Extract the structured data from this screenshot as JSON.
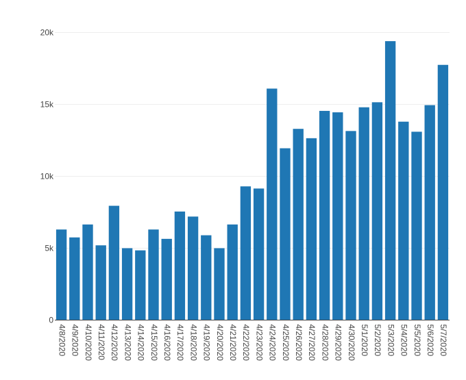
{
  "chart_data": {
    "type": "bar",
    "title": "",
    "xlabel": "",
    "ylabel": "",
    "ylim": [
      0,
      20000
    ],
    "yticks": [
      0,
      5000,
      10000,
      15000,
      20000
    ],
    "ytick_labels": [
      "0",
      "5k",
      "10k",
      "15k",
      "20k"
    ],
    "grid": true,
    "bar_color": "#1f77b4",
    "categories": [
      "4/8/2020",
      "4/9/2020",
      "4/10/2020",
      "4/11/2020",
      "4/12/2020",
      "4/13/2020",
      "4/14/2020",
      "4/15/2020",
      "4/16/2020",
      "4/17/2020",
      "4/18/2020",
      "4/19/2020",
      "4/20/2020",
      "4/21/2020",
      "4/22/2020",
      "4/23/2020",
      "4/24/2020",
      "4/25/2020",
      "4/26/2020",
      "4/27/2020",
      "4/28/2020",
      "4/29/2020",
      "4/30/2020",
      "5/1/2020",
      "5/2/2020",
      "5/3/2020",
      "5/4/2020",
      "5/5/2020",
      "5/6/2020",
      "5/7/2020"
    ],
    "values": [
      6300,
      5750,
      6650,
      5200,
      7950,
      5000,
      4850,
      6300,
      5650,
      7550,
      7200,
      5900,
      5000,
      6650,
      9300,
      9150,
      16100,
      11950,
      13300,
      12650,
      14550,
      14450,
      13150,
      14800,
      15150,
      19400,
      13800,
      13100,
      14950,
      17750
    ]
  }
}
